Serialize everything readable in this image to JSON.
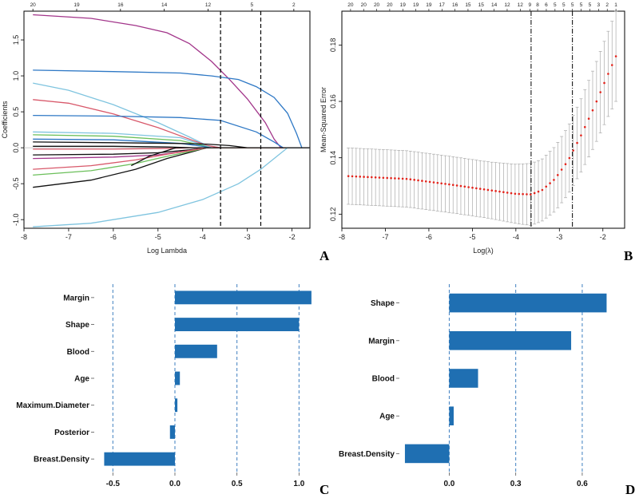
{
  "chart_data": [
    {
      "panel": "A",
      "type": "line",
      "xlabel": "Log Lambda",
      "ylabel": "Coefficients",
      "xlim": [
        -8.0,
        -1.6
      ],
      "ylim": [
        -1.12,
        1.9
      ],
      "xticks": [
        -8,
        -7,
        -6,
        -5,
        -4,
        -3,
        -2
      ],
      "yticks": [
        -1.0,
        -0.5,
        0.0,
        0.5,
        1.0,
        1.5
      ],
      "top_axis": {
        "positions": [
          -7.8,
          -6.82,
          -5.84,
          -4.86,
          -3.88,
          -2.9,
          -1.96
        ],
        "labels": [
          "20",
          "19",
          "16",
          "14",
          "12",
          "5",
          "2"
        ]
      },
      "vlines": [
        -3.6,
        -2.7
      ],
      "series": [
        {
          "name": "s1",
          "color": "#a2358a",
          "x": [
            -7.8,
            -6.5,
            -5.5,
            -4.8,
            -4.3,
            -3.8,
            -3.4,
            -3.0,
            -2.6,
            -2.4,
            -2.25
          ],
          "y": [
            1.85,
            1.8,
            1.7,
            1.6,
            1.45,
            1.2,
            0.95,
            0.68,
            0.35,
            0.12,
            0.0
          ]
        },
        {
          "name": "s2",
          "color": "#2e78c5",
          "x": [
            -7.8,
            -6.0,
            -4.5,
            -3.8,
            -3.2,
            -2.8,
            -2.4,
            -2.1,
            -1.9,
            -1.78
          ],
          "y": [
            1.08,
            1.06,
            1.04,
            1.0,
            0.95,
            0.85,
            0.7,
            0.48,
            0.2,
            0.0
          ]
        },
        {
          "name": "s3",
          "color": "#7fc4df",
          "x": [
            -7.8,
            -7.0,
            -6.0,
            -5.0,
            -4.3,
            -3.9,
            -3.6
          ],
          "y": [
            0.9,
            0.8,
            0.6,
            0.35,
            0.15,
            0.03,
            0.0
          ]
        },
        {
          "name": "s4",
          "color": "#d8586a",
          "x": [
            -7.8,
            -7.0,
            -6.0,
            -5.0,
            -4.3,
            -3.9,
            -3.6
          ],
          "y": [
            0.67,
            0.62,
            0.47,
            0.28,
            0.12,
            0.03,
            0.0
          ]
        },
        {
          "name": "s5",
          "color": "#2e78c5",
          "x": [
            -7.8,
            -6.0,
            -4.5,
            -3.6,
            -2.8,
            -2.4,
            -2.2
          ],
          "y": [
            0.45,
            0.44,
            0.42,
            0.38,
            0.22,
            0.08,
            0.0
          ]
        },
        {
          "name": "s6",
          "color": "#7fc4df",
          "x": [
            -7.8,
            -6.0,
            -4.5,
            -4.0,
            -3.8
          ],
          "y": [
            0.22,
            0.2,
            0.14,
            0.04,
            0.0
          ]
        },
        {
          "name": "s7",
          "color": "#6bbf5a",
          "x": [
            -7.8,
            -6.0,
            -4.5,
            -4.0,
            -3.85
          ],
          "y": [
            0.18,
            0.16,
            0.1,
            0.03,
            0.0
          ]
        },
        {
          "name": "s8",
          "color": "#2e78c5",
          "x": [
            -7.8,
            -6.0,
            -4.5,
            -4.0,
            -3.85
          ],
          "y": [
            0.12,
            0.11,
            0.06,
            0.02,
            0.0
          ]
        },
        {
          "name": "s9",
          "color": "#111111",
          "x": [
            -7.8,
            -6.0,
            -4.6,
            -3.9,
            -3.4,
            -3.0
          ],
          "y": [
            0.08,
            0.07,
            0.06,
            0.05,
            0.03,
            0.0
          ]
        },
        {
          "name": "s10",
          "color": "#111111",
          "x": [
            -7.8,
            -6.0,
            -4.8,
            -4.2,
            -3.9
          ],
          "y": [
            0.02,
            0.02,
            0.01,
            0.0,
            0.0
          ]
        },
        {
          "name": "s11",
          "color": "#d8586a",
          "x": [
            -7.8,
            -6.0,
            -4.8,
            -4.2,
            -3.9
          ],
          "y": [
            -0.02,
            -0.02,
            -0.01,
            0.0,
            0.0
          ]
        },
        {
          "name": "s12",
          "color": "#111111",
          "x": [
            -7.8,
            -6.0,
            -5.0,
            -4.3,
            -3.9
          ],
          "y": [
            -0.1,
            -0.09,
            -0.07,
            -0.03,
            0.0
          ]
        },
        {
          "name": "s13",
          "color": "#a2358a",
          "x": [
            -7.8,
            -6.0,
            -5.0,
            -4.3,
            -3.9
          ],
          "y": [
            -0.15,
            -0.13,
            -0.1,
            -0.04,
            0.0
          ]
        },
        {
          "name": "s14",
          "color": "#111111",
          "x": [
            -7.8,
            -6.5,
            -5.5,
            -4.8,
            -4.2,
            -3.9
          ],
          "y": [
            -0.55,
            -0.45,
            -0.3,
            -0.15,
            -0.05,
            0.0
          ]
        },
        {
          "name": "s15",
          "color": "#6bbf5a",
          "x": [
            -7.8,
            -6.5,
            -5.5,
            -4.8,
            -4.2,
            -3.9
          ],
          "y": [
            -0.38,
            -0.32,
            -0.22,
            -0.12,
            -0.04,
            0.0
          ]
        },
        {
          "name": "s16",
          "color": "#d8586a",
          "x": [
            -7.8,
            -6.5,
            -5.5,
            -4.8,
            -4.2,
            -3.9
          ],
          "y": [
            -0.3,
            -0.25,
            -0.17,
            -0.09,
            -0.03,
            0.0
          ]
        },
        {
          "name": "s17",
          "color": "#7fc4df",
          "x": [
            -7.8,
            -6.5,
            -5.0,
            -4.0,
            -3.2,
            -2.7,
            -2.3,
            -2.1
          ],
          "y": [
            -1.1,
            -1.05,
            -0.9,
            -0.72,
            -0.5,
            -0.3,
            -0.1,
            0.0
          ]
        },
        {
          "name": "s18",
          "color": "#111111",
          "x": [
            -5.6,
            -5.2,
            -4.6
          ],
          "y": [
            -0.25,
            -0.12,
            0.0
          ]
        }
      ]
    },
    {
      "panel": "B",
      "type": "line",
      "xlabel": "Log(λ)",
      "ylabel": "Mean-Squared Error",
      "xlim": [
        -8.0,
        -1.5
      ],
      "ylim": [
        0.115,
        0.192
      ],
      "xticks": [
        -8,
        -7,
        -6,
        -5,
        -4,
        -3,
        -2
      ],
      "yticks": [
        0.12,
        0.14,
        0.16,
        0.18
      ],
      "top_axis": {
        "positions": [
          -7.8,
          -7.5,
          -7.2,
          -6.9,
          -6.6,
          -6.3,
          -6.0,
          -5.7,
          -5.4,
          -5.1,
          -4.8,
          -4.5,
          -4.2,
          -3.9,
          -3.68,
          -3.5,
          -3.3,
          -3.1,
          -2.9,
          -2.7,
          -2.5,
          -2.3,
          -2.1,
          -1.9,
          -1.7
        ],
        "labels": [
          "20",
          "20",
          "20",
          "20",
          "19",
          "19",
          "19",
          "17",
          "16",
          "15",
          "15",
          "14",
          "12",
          "12",
          "9",
          "8",
          "6",
          "5",
          "5",
          "5",
          "5",
          "5",
          "3",
          "2",
          "1"
        ]
      },
      "vlines": [
        -3.65,
        -2.7
      ],
      "curve": {
        "x": [
          -7.85,
          -6.5,
          -5.5,
          -4.6,
          -4.0,
          -3.65,
          -3.4,
          -3.1,
          -2.8,
          -2.5,
          -2.2,
          -1.9,
          -1.7
        ],
        "mean": [
          0.1335,
          0.1325,
          0.1305,
          0.1285,
          0.1272,
          0.127,
          0.1285,
          0.1325,
          0.139,
          0.148,
          0.158,
          0.169,
          0.176
        ],
        "sd": [
          0.01,
          0.01,
          0.01,
          0.01,
          0.0105,
          0.011,
          0.011,
          0.0115,
          0.012,
          0.013,
          0.014,
          0.015,
          0.016
        ]
      },
      "n_points": 70
    },
    {
      "panel": "C",
      "type": "bar",
      "orientation": "horizontal",
      "categories": [
        "Margin",
        "Shape",
        "Blood",
        "Age",
        "Maximum.Diameter",
        "Posterior",
        "Breast.Density"
      ],
      "values": [
        1.1,
        1.0,
        0.34,
        0.04,
        0.02,
        -0.04,
        -0.57
      ],
      "xlim": [
        -0.65,
        1.12
      ],
      "xticks": [
        -0.5,
        0.0,
        0.5,
        1.0
      ],
      "xtick_labels": [
        "-0.5",
        "0.0",
        "0.5",
        "1.0"
      ],
      "color": "#1f6fb2",
      "grid_lines": [
        -0.5,
        0.0,
        0.5,
        1.0
      ]
    },
    {
      "panel": "D",
      "type": "bar",
      "orientation": "horizontal",
      "categories": [
        "Shape",
        "Margin",
        "Blood",
        "Age",
        "Breast.Density"
      ],
      "values": [
        0.71,
        0.55,
        0.13,
        0.02,
        -0.2
      ],
      "xlim": [
        -0.225,
        0.73
      ],
      "xticks": [
        0.0,
        0.3,
        0.6
      ],
      "xtick_labels": [
        "0.0",
        "0.3",
        "0.6"
      ],
      "color": "#1f6fb2",
      "grid_lines": [
        0.0,
        0.3,
        0.6
      ]
    }
  ],
  "panel_letters": {
    "A": "A",
    "B": "B",
    "C": "C",
    "D": "D"
  }
}
